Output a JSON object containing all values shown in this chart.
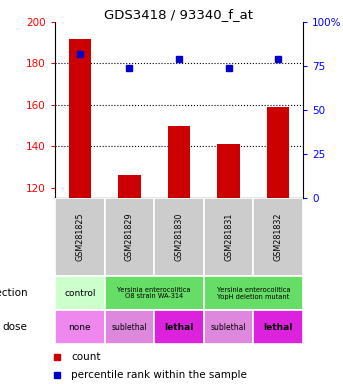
{
  "title": "GDS3418 / 93340_f_at",
  "samples": [
    "GSM281825",
    "GSM281829",
    "GSM281830",
    "GSM281831",
    "GSM281832"
  ],
  "counts": [
    192,
    126,
    150,
    141,
    159
  ],
  "percentile_ranks": [
    82,
    74,
    79,
    74,
    79
  ],
  "ylim_left": [
    115,
    200
  ],
  "ylim_right": [
    0,
    100
  ],
  "yticks_left": [
    120,
    140,
    160,
    180,
    200
  ],
  "yticks_right": [
    0,
    25,
    50,
    75,
    100
  ],
  "bar_color": "#cc0000",
  "dot_color": "#0000cc",
  "gsm_bg_color": "#cccccc",
  "infection_control_color": "#ccffcc",
  "infection_yersinia_color": "#66dd66",
  "dose_none_color": "#ee88ee",
  "dose_sublethal_color": "#dd88dd",
  "dose_lethal_color": "#dd22dd",
  "legend_count_color": "#cc0000",
  "legend_dot_color": "#0000cc"
}
